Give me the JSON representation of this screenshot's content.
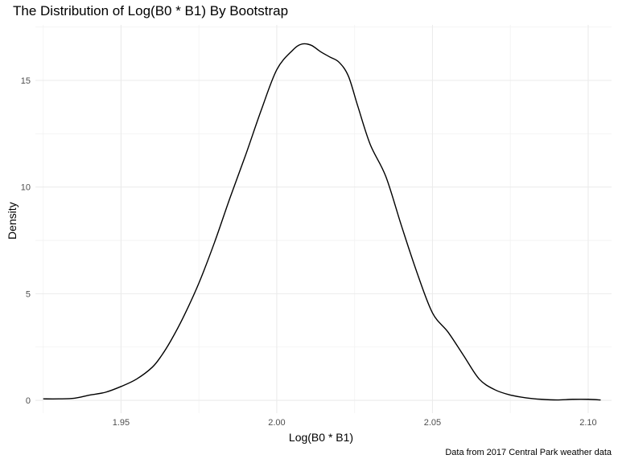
{
  "chart_data": {
    "type": "line",
    "title": "The Distribution of Log(B0 * B1) By Bootstrap",
    "xlabel": "Log(B0 * B1)",
    "ylabel": "Density",
    "caption": "Data from 2017 Central Park weather data",
    "xlim": [
      1.9225,
      2.1075
    ],
    "ylim": [
      -0.6,
      17.6
    ],
    "x_ticks": [
      1.95,
      2.0,
      2.05,
      2.1
    ],
    "x_tick_labels": [
      "1.95",
      "2.00",
      "2.05",
      "2.10"
    ],
    "y_ticks": [
      0,
      5,
      10,
      15
    ],
    "y_tick_labels": [
      "0",
      "5",
      "10",
      "15"
    ],
    "grid": true,
    "legend": "none",
    "line_color": "#000000",
    "series": [
      {
        "x": [
          1.925,
          1.93,
          1.935,
          1.94,
          1.945,
          1.95,
          1.955,
          1.96,
          1.963,
          1.966,
          1.97,
          1.975,
          1.98,
          1.985,
          1.99,
          1.995,
          2.0,
          2.005,
          2.008,
          2.011,
          2.014,
          2.017,
          2.02,
          2.023,
          2.026,
          2.03,
          2.035,
          2.04,
          2.045,
          2.05,
          2.055,
          2.06,
          2.065,
          2.07,
          2.075,
          2.08,
          2.085,
          2.09,
          2.095,
          2.1,
          2.104
        ],
        "y": [
          0.07,
          0.07,
          0.1,
          0.25,
          0.38,
          0.65,
          1.0,
          1.55,
          2.1,
          2.8,
          3.9,
          5.5,
          7.4,
          9.5,
          11.5,
          13.6,
          15.5,
          16.4,
          16.7,
          16.65,
          16.35,
          16.1,
          15.85,
          15.2,
          13.8,
          12.0,
          10.5,
          8.2,
          6.0,
          4.1,
          3.2,
          2.1,
          1.0,
          0.5,
          0.25,
          0.12,
          0.05,
          0.02,
          0.05,
          0.05,
          0.02
        ]
      }
    ]
  }
}
